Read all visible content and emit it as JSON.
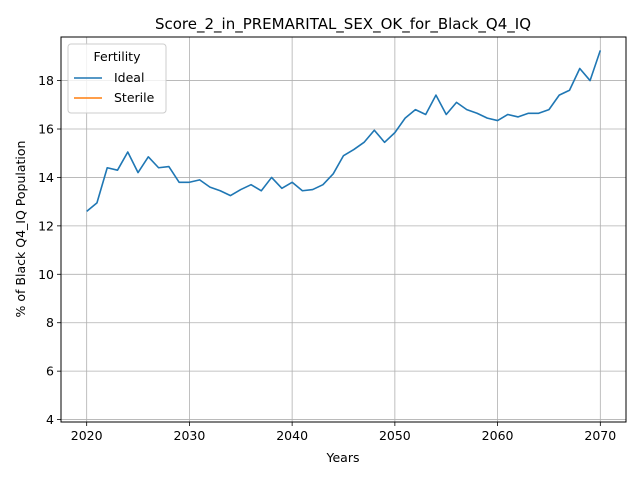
{
  "chart_data": {
    "type": "line",
    "title": "Score_2_in_PREMARITAL_SEX_OK_for_Black_Q4_IQ",
    "xlabel": "Years",
    "ylabel": "% of Black Q4_IQ Population",
    "xlim": [
      2017.5,
      2072.5
    ],
    "ylim": [
      3.9,
      19.8
    ],
    "xticks": [
      2020,
      2030,
      2040,
      2050,
      2060,
      2070
    ],
    "yticks": [
      4,
      6,
      8,
      10,
      12,
      14,
      16,
      18
    ],
    "grid": true,
    "legend": {
      "title": "Fertility",
      "placement": "top-left",
      "entries": [
        "Ideal",
        "Sterile"
      ]
    },
    "series": [
      {
        "name": "Ideal",
        "color": "#1f77b4",
        "x": [
          2020,
          2021,
          2022,
          2023,
          2024,
          2025,
          2026,
          2027,
          2028,
          2029,
          2030,
          2031,
          2032,
          2033,
          2034,
          2035,
          2036,
          2037,
          2038,
          2039,
          2040,
          2041,
          2042,
          2043,
          2044,
          2045,
          2046,
          2047,
          2048,
          2049,
          2050,
          2051,
          2052,
          2053,
          2054,
          2055,
          2056,
          2057,
          2058,
          2059,
          2060,
          2061,
          2062,
          2063,
          2064,
          2065,
          2066,
          2067,
          2068,
          2069,
          2070
        ],
        "y": [
          12.6,
          12.95,
          14.4,
          14.3,
          15.05,
          14.2,
          14.85,
          14.4,
          14.45,
          13.8,
          13.8,
          13.9,
          13.6,
          13.45,
          13.25,
          13.5,
          13.7,
          13.45,
          14.0,
          13.55,
          13.8,
          13.45,
          13.5,
          13.7,
          14.15,
          14.9,
          15.15,
          15.45,
          15.95,
          15.45,
          15.85,
          16.45,
          16.8,
          16.6,
          17.4,
          16.6,
          17.1,
          16.8,
          16.65,
          16.45,
          16.35,
          16.6,
          16.5,
          16.65,
          16.65,
          16.8,
          17.4,
          17.6,
          18.5,
          18.0,
          19.25
        ]
      },
      {
        "name": "Sterile",
        "color": "#ff7f0e",
        "x": [],
        "y": []
      }
    ]
  }
}
